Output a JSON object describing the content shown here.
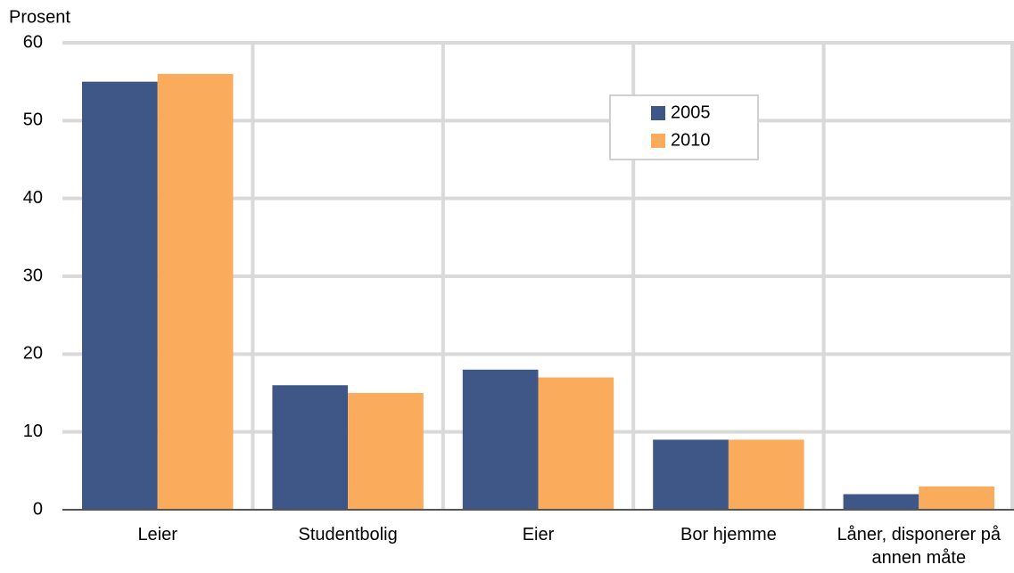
{
  "chart_data": {
    "type": "bar",
    "y_label": "Prosent",
    "categories": [
      "Leier",
      "Studentbolig",
      "Eier",
      "Bor hjemme",
      "Låner, disponerer på annen måte"
    ],
    "series": [
      {
        "name": "2005",
        "color": "#3f5787",
        "values": [
          55,
          16,
          18,
          9,
          2
        ]
      },
      {
        "name": "2010",
        "color": "#fbab5c",
        "values": [
          56,
          15,
          17,
          9,
          3
        ]
      }
    ],
    "ylim": [
      0,
      60
    ],
    "yticks": [
      0,
      10,
      20,
      30,
      40,
      50,
      60
    ],
    "grid": true
  }
}
